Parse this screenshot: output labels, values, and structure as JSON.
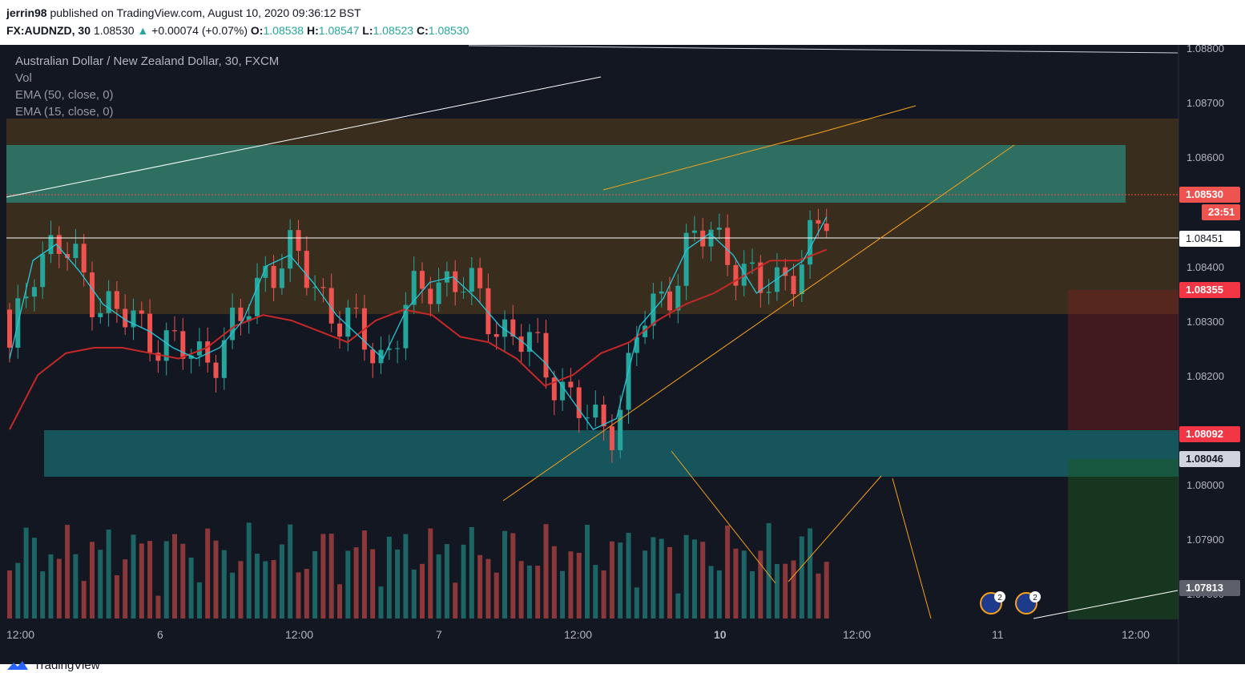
{
  "header": {
    "publisher": "jerrin98",
    "published_text": "published on TradingView.com, August 10, 2020 09:36:12 BST",
    "symbol": "FX:AUDNZD, 30",
    "last": "1.08530",
    "change": "+0.00074 (+0.07%)",
    "o_label": "O:",
    "o": "1.08538",
    "h_label": "H:",
    "h": "1.08547",
    "l_label": "L:",
    "l": "1.08523",
    "c_label": "C:",
    "c": "1.08530"
  },
  "legend": {
    "title": "Australian Dollar / New Zealand Dollar, 30, FXCM",
    "vol": "Vol",
    "ema50": "EMA (50, close, 0)",
    "ema15": "EMA (15, close, 0)"
  },
  "price_tags": {
    "current": "1.08530",
    "countdown": "23:51",
    "hline": "1.08451",
    "stop": "1.08355",
    "entry": "1.08092",
    "level2": "1.08046",
    "target": "1.07813"
  },
  "event_badges": [
    "2",
    "2"
  ],
  "footer": {
    "brand": "TradingView"
  },
  "colors": {
    "up": "#26a69a",
    "down": "#ef5350",
    "ema15": "#26c6da",
    "ema50": "#c62828",
    "orange_zone": "#3b2f1f",
    "teal_zone": "#2d7a6e",
    "trend_line": "#f7a21b"
  },
  "chart_data": {
    "type": "candlestick",
    "symbol": "FX:AUDNZD",
    "timeframe": "30",
    "y_ticks": [
      "1.08800",
      "1.08700",
      "1.08600",
      "1.08400",
      "1.08300",
      "1.08200",
      "1.08000",
      "1.07900",
      "1.07800"
    ],
    "x_ticks": [
      "12:00",
      "6",
      "12:00",
      "7",
      "12:00",
      "10",
      "12:00",
      "11",
      "12:00"
    ],
    "ylim": [
      1.0778,
      1.0882
    ],
    "series": [
      {
        "name": "EMA (15, close, 0)",
        "color": "#26c6da",
        "values": [
          1.0823,
          1.0841,
          1.0844,
          1.0839,
          1.0833,
          1.083,
          1.0828,
          1.0825,
          1.0823,
          1.0825,
          1.083,
          1.084,
          1.0842,
          1.0837,
          1.0831,
          1.0827,
          1.0823,
          1.0832,
          1.0837,
          1.0838,
          1.0834,
          1.0829,
          1.0826,
          1.0822,
          1.0816,
          1.081,
          1.0812,
          1.0829,
          1.0834,
          1.0843,
          1.0846,
          1.0842,
          1.0835,
          1.0838,
          1.0841,
          1.0849
        ]
      },
      {
        "name": "EMA (50, close, 0)",
        "color": "#c62828",
        "values": [
          1.081,
          1.082,
          1.0824,
          1.0825,
          1.0825,
          1.0824,
          1.0823,
          1.0825,
          1.0829,
          1.0831,
          1.083,
          1.0828,
          1.0826,
          1.083,
          1.0832,
          1.0831,
          1.0827,
          1.0826,
          1.0823,
          1.0818,
          1.082,
          1.0824,
          1.0826,
          1.083,
          1.0833,
          1.0835,
          1.0838,
          1.0841,
          1.0841,
          1.0843
        ]
      }
    ]
  }
}
